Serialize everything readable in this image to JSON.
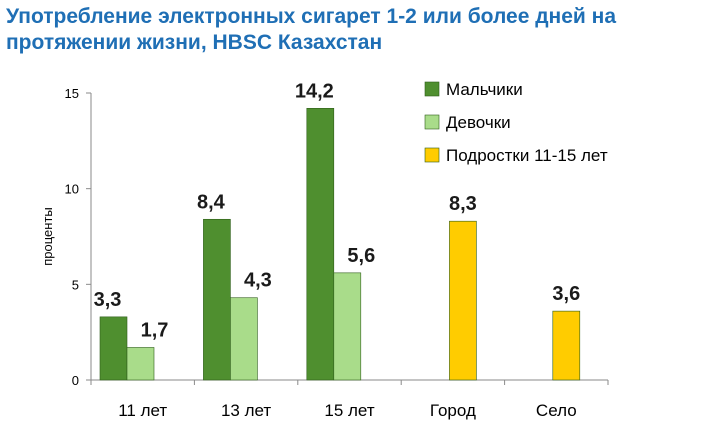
{
  "title_lines": [
    "Употребление электронных сигарет 1-2 или более дней на",
    "протяжении жизни, HBSC Казахстан"
  ],
  "chart_data": {
    "type": "bar",
    "title": "Употребление электронных сигарет 1-2 или более дней на протяжении жизни, HBSC Казахстан",
    "categories": [
      "11 лет",
      "13 лет",
      "15 лет",
      "Город",
      "Село"
    ],
    "ylabel": "проценты",
    "xlabel": "",
    "ylim": [
      0,
      15
    ],
    "yticks": [
      0,
      5,
      10,
      15
    ],
    "grid": false,
    "legend_position": "top-right",
    "series": [
      {
        "name": "Мальчики",
        "color": "#4f8f2f",
        "values": [
          3.3,
          8.4,
          14.2,
          null,
          null
        ],
        "labels": [
          "3,3",
          "8,4",
          "14,2",
          null,
          null
        ]
      },
      {
        "name": "Девочки",
        "color": "#a9dc8a",
        "values": [
          1.7,
          4.3,
          5.6,
          null,
          null
        ],
        "labels": [
          "1,7",
          "4,3",
          "5,6",
          null,
          null
        ]
      },
      {
        "name": "Подростки 11-15 лет",
        "color": "#ffcc00",
        "values": [
          null,
          null,
          null,
          8.3,
          3.6
        ],
        "labels": [
          null,
          null,
          null,
          "8,3",
          "3,6"
        ]
      }
    ]
  }
}
